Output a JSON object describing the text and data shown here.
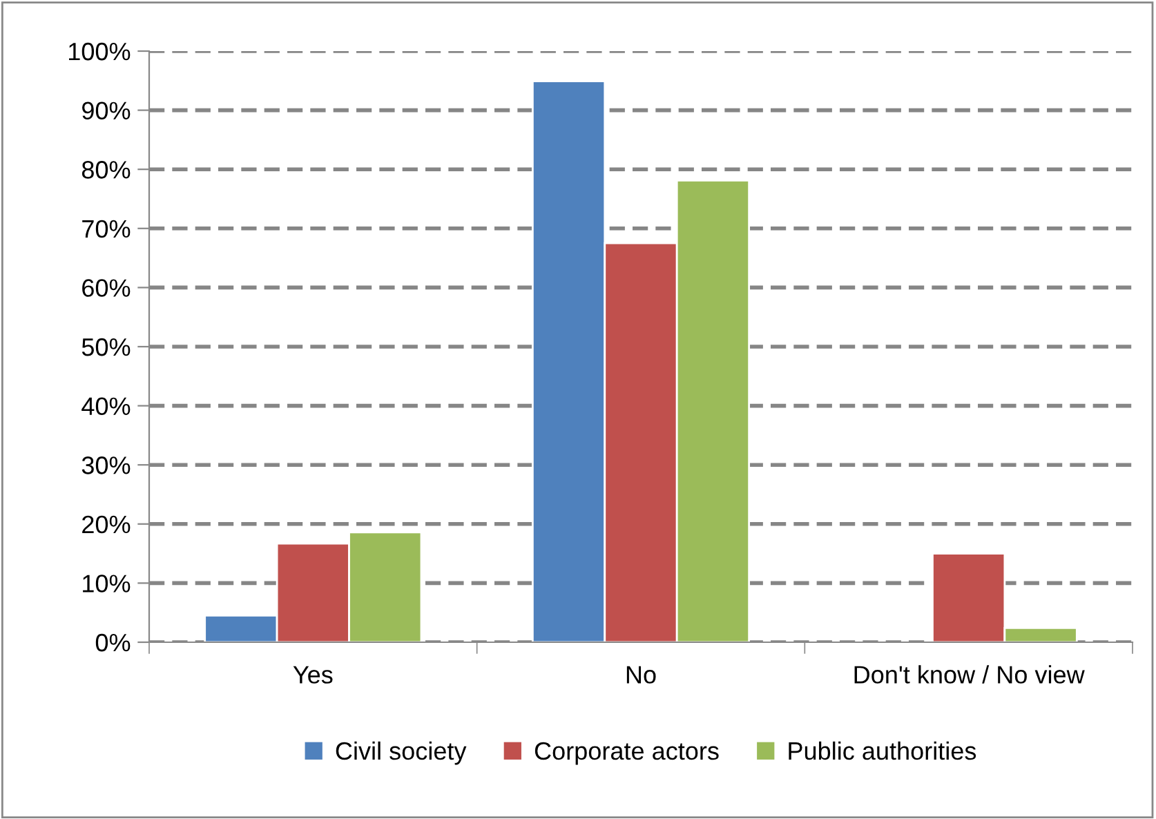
{
  "chart_data": {
    "type": "bar",
    "categories": [
      "Yes",
      "No",
      "Don't know / No view"
    ],
    "series": [
      {
        "name": "Civil society",
        "color": "#4f81bd",
        "values": [
          4.5,
          94.9,
          null
        ]
      },
      {
        "name": "Corporate actors",
        "color": "#c0504d",
        "values": [
          16.7,
          67.5,
          15.0
        ]
      },
      {
        "name": "Public authorities",
        "color": "#9bbb59",
        "values": [
          18.6,
          78.1,
          2.4
        ]
      }
    ],
    "ylim": [
      0,
      100
    ],
    "yticks": [
      {
        "value": 0,
        "label": "0%"
      },
      {
        "value": 10,
        "label": "10%"
      },
      {
        "value": 20,
        "label": "20%"
      },
      {
        "value": 30,
        "label": "30%"
      },
      {
        "value": 40,
        "label": "40%"
      },
      {
        "value": 50,
        "label": "50%"
      },
      {
        "value": 60,
        "label": "60%"
      },
      {
        "value": 70,
        "label": "70%"
      },
      {
        "value": 80,
        "label": "80%"
      },
      {
        "value": 90,
        "label": "90%"
      },
      {
        "value": 100,
        "label": "100%"
      }
    ],
    "grid": "y",
    "line_style": "dashed",
    "legend": "bottom"
  }
}
